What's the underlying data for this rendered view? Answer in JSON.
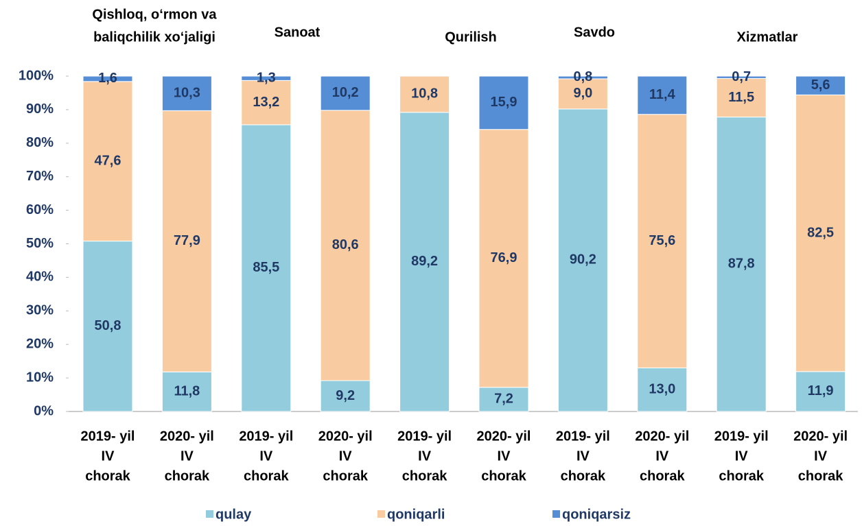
{
  "chart_data": {
    "type": "stacked_bar",
    "groups": [
      [
        "Qishloq, o‘rmon va",
        "baliqchilik xo‘jaligi"
      ],
      [
        "Sanoat"
      ],
      [
        "Qurilish"
      ],
      [
        "Savdo"
      ],
      [
        "Xizmatlar"
      ]
    ],
    "categories": [
      [
        "2019- yil",
        "IV",
        "chorak"
      ],
      [
        "2020- yil",
        "IV",
        "chorak"
      ],
      [
        "2019- yil",
        "IV",
        "chorak"
      ],
      [
        "2020- yil",
        "IV",
        "chorak"
      ],
      [
        "2019- yil",
        "IV",
        "chorak"
      ],
      [
        "2020- yil",
        "IV",
        "chorak"
      ],
      [
        "2019- yil",
        "IV",
        "chorak"
      ],
      [
        "2020- yil",
        "IV",
        "chorak"
      ],
      [
        "2019- yil",
        "IV",
        "chorak"
      ],
      [
        "2020- yil",
        "IV",
        "chorak"
      ]
    ],
    "series": [
      {
        "name": "qulay",
        "color": "#93cddd",
        "values": [
          50.8,
          11.8,
          85.5,
          9.2,
          89.2,
          7.2,
          90.2,
          13.0,
          87.8,
          11.9
        ],
        "value_labels": [
          "50,8",
          "11,8",
          "85,5",
          "9,2",
          "89,2",
          "7,2",
          "90,2",
          "13,0",
          "87,8",
          "11,9"
        ]
      },
      {
        "name": "qoniqarli",
        "color": "#f9cba0",
        "values": [
          47.6,
          77.9,
          13.2,
          80.6,
          10.8,
          76.9,
          9.0,
          75.6,
          11.5,
          82.5
        ],
        "value_labels": [
          "47,6",
          "77,9",
          "13,2",
          "80,6",
          "10,8",
          "76,9",
          "9,0",
          "75,6",
          "11,5",
          "82,5"
        ]
      },
      {
        "name": "qoniqarsiz",
        "color": "#558ed5",
        "values": [
          1.6,
          10.3,
          1.3,
          10.2,
          null,
          15.9,
          0.8,
          11.4,
          0.7,
          5.6
        ],
        "value_labels": [
          "1,6",
          "10,3",
          "1,3",
          "10,2",
          null,
          "15,9",
          "0,8",
          "11,4",
          "0,7",
          "5,6"
        ]
      }
    ],
    "ylim": [
      0,
      100
    ],
    "yticks": [
      {
        "value": 0,
        "label": "0%"
      },
      {
        "value": 10,
        "label": "10%"
      },
      {
        "value": 20,
        "label": "20%"
      },
      {
        "value": 30,
        "label": "30%"
      },
      {
        "value": 40,
        "label": "40%"
      },
      {
        "value": 50,
        "label": "50%"
      },
      {
        "value": 60,
        "label": "60%"
      },
      {
        "value": 70,
        "label": "70%"
      },
      {
        "value": 80,
        "label": "80%"
      },
      {
        "value": 90,
        "label": "90%"
      },
      {
        "value": 100,
        "label": "100%"
      }
    ],
    "legend": "bottom"
  }
}
